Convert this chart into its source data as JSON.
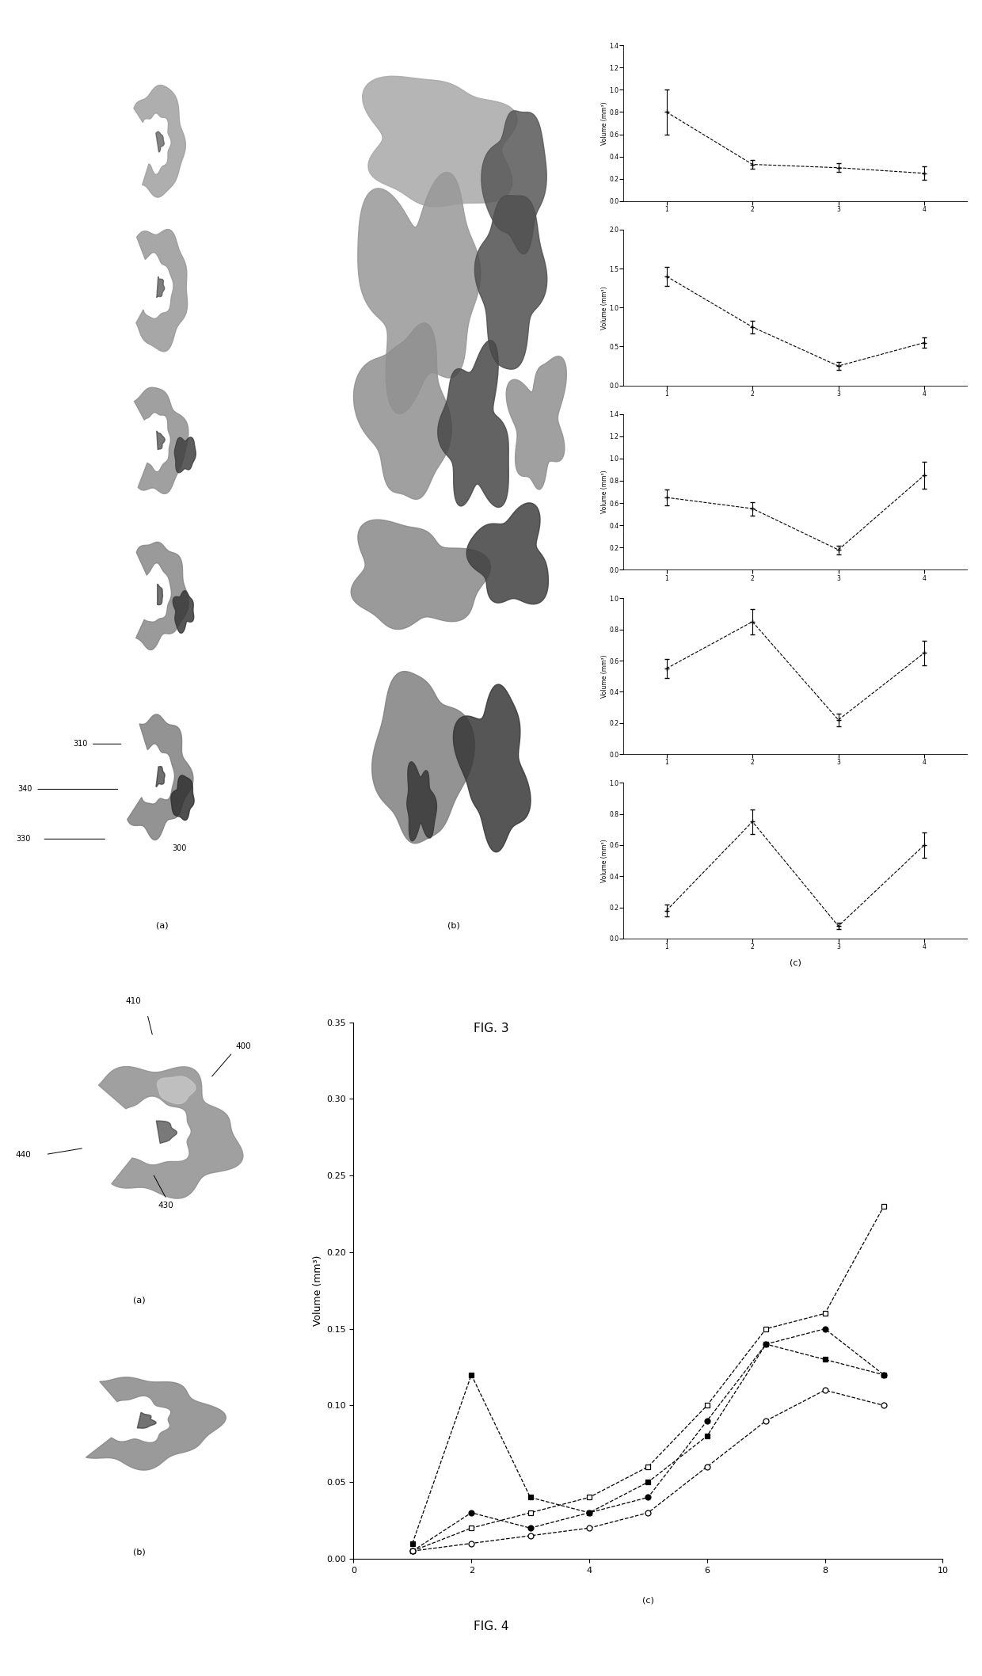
{
  "fig3_plots": [
    {
      "x": [
        1,
        2,
        3,
        4
      ],
      "y": [
        0.8,
        0.33,
        0.3,
        0.25
      ],
      "yerr": [
        0.2,
        0.04,
        0.04,
        0.06
      ],
      "ylabel": "Volume (mm³)",
      "ylim": [
        0,
        1.4
      ],
      "yticks": [
        0,
        0.2,
        0.4,
        0.6,
        0.8,
        1.0,
        1.2,
        1.4
      ]
    },
    {
      "x": [
        1,
        2,
        3,
        4
      ],
      "y": [
        1.4,
        0.75,
        0.25,
        0.55
      ],
      "yerr": [
        0.12,
        0.08,
        0.05,
        0.07
      ],
      "ylabel": "Volume (mm³)",
      "ylim": [
        0,
        2.0
      ],
      "yticks": [
        0,
        0.5,
        1.0,
        1.5,
        2.0
      ]
    },
    {
      "x": [
        1,
        2,
        3,
        4
      ],
      "y": [
        0.65,
        0.55,
        0.18,
        0.85
      ],
      "yerr": [
        0.07,
        0.06,
        0.04,
        0.12
      ],
      "ylabel": "Volume (mm³)",
      "ylim": [
        0,
        1.4
      ],
      "yticks": [
        0,
        0.2,
        0.4,
        0.6,
        0.8,
        1.0,
        1.2,
        1.4
      ]
    },
    {
      "x": [
        1,
        2,
        3,
        4
      ],
      "y": [
        0.55,
        0.85,
        0.22,
        0.65
      ],
      "yerr": [
        0.06,
        0.08,
        0.04,
        0.08
      ],
      "ylabel": "Volume (mm³)",
      "ylim": [
        0,
        1.0
      ],
      "yticks": [
        0,
        0.2,
        0.4,
        0.6,
        0.8,
        1.0
      ]
    },
    {
      "x": [
        1,
        2,
        3,
        4
      ],
      "y": [
        0.18,
        0.75,
        0.08,
        0.6
      ],
      "yerr": [
        0.04,
        0.08,
        0.02,
        0.08
      ],
      "ylabel": "Volume (mm³)",
      "ylim": [
        0,
        1.0
      ],
      "yticks": [
        0,
        0.2,
        0.4,
        0.6,
        0.8,
        1.0
      ]
    }
  ],
  "fig4_plot": {
    "series": [
      {
        "x": [
          1,
          2,
          3,
          4,
          5,
          6,
          7,
          8,
          9
        ],
        "y": [
          0.01,
          0.12,
          0.04,
          0.03,
          0.05,
          0.08,
          0.14,
          0.13,
          0.12
        ],
        "marker": "s",
        "filled": true
      },
      {
        "x": [
          1,
          2,
          3,
          4,
          5,
          6,
          7,
          8,
          9
        ],
        "y": [
          0.005,
          0.02,
          0.03,
          0.04,
          0.06,
          0.1,
          0.15,
          0.16,
          0.23
        ],
        "marker": "s",
        "filled": false
      },
      {
        "x": [
          1,
          2,
          3,
          4,
          5,
          6,
          7,
          8,
          9
        ],
        "y": [
          0.005,
          0.03,
          0.02,
          0.03,
          0.04,
          0.09,
          0.14,
          0.15,
          0.12
        ],
        "marker": "o",
        "filled": true
      },
      {
        "x": [
          1,
          2,
          3,
          4,
          5,
          6,
          7,
          8,
          9
        ],
        "y": [
          0.005,
          0.01,
          0.015,
          0.02,
          0.03,
          0.06,
          0.09,
          0.11,
          0.1
        ],
        "marker": "o",
        "filled": false
      }
    ],
    "ylabel": "Volume (mm³)",
    "ylim": [
      0,
      0.35
    ],
    "xlim": [
      0,
      10
    ],
    "yticks": [
      0.0,
      0.05,
      0.1,
      0.15,
      0.2,
      0.25,
      0.3,
      0.35
    ],
    "xticks": [
      0,
      2,
      4,
      6,
      8,
      10
    ]
  },
  "bg_color": "#ffffff"
}
